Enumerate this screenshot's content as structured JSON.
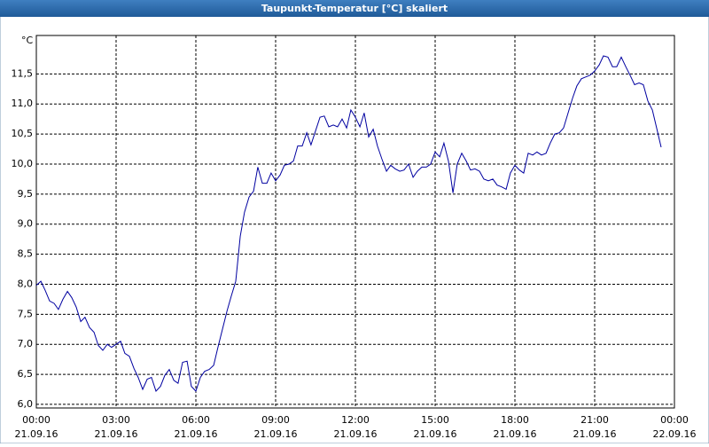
{
  "chart_data": {
    "type": "line",
    "title": "Taupunkt-Temperatur [°C] skaliert",
    "ylabel": "°C",
    "xlim": [
      0,
      24
    ],
    "xticks": [
      {
        "value": 0,
        "label": "00:00"
      },
      {
        "value": 3,
        "label": "03:00"
      },
      {
        "value": 6,
        "label": "06:00"
      },
      {
        "value": 9,
        "label": "09:00"
      },
      {
        "value": 12,
        "label": "12:00"
      },
      {
        "value": 15,
        "label": "15:00"
      },
      {
        "value": 18,
        "label": "18:00"
      },
      {
        "value": 21,
        "label": "21:00"
      },
      {
        "value": 24,
        "label": "00:00"
      }
    ],
    "xtick_dates": [
      "21.09.16",
      "21.09.16",
      "21.09.16",
      "21.09.16",
      "21.09.16",
      "21.09.16",
      "21.09.16",
      "21.09.16",
      "22.09.16"
    ],
    "ylim": [
      5.94,
      12.14
    ],
    "yticks": [
      {
        "value": 6,
        "label": "6,0"
      },
      {
        "value": 6.5,
        "label": "6,5"
      },
      {
        "value": 7,
        "label": "7,0"
      },
      {
        "value": 7.5,
        "label": "7,5"
      },
      {
        "value": 8,
        "label": "8,0"
      },
      {
        "value": 8.5,
        "label": "8,5"
      },
      {
        "value": 9,
        "label": "9,0"
      },
      {
        "value": 9.5,
        "label": "9,5"
      },
      {
        "value": 10,
        "label": "10,0"
      },
      {
        "value": 10.5,
        "label": "10,5"
      },
      {
        "value": 11,
        "label": "11,0"
      },
      {
        "value": 11.5,
        "label": "11,5"
      }
    ],
    "grid": true,
    "x": [
      0,
      0.17,
      0.33,
      0.5,
      0.67,
      0.83,
      1,
      1.17,
      1.33,
      1.5,
      1.67,
      1.83,
      2,
      2.17,
      2.33,
      2.5,
      2.67,
      2.83,
      3,
      3.17,
      3.33,
      3.5,
      3.67,
      3.83,
      4,
      4.17,
      4.33,
      4.5,
      4.67,
      4.83,
      5,
      5.17,
      5.33,
      5.5,
      5.67,
      5.83,
      6,
      6.17,
      6.33,
      6.5,
      6.67,
      6.83,
      7,
      7.17,
      7.33,
      7.5,
      7.67,
      7.83,
      8,
      8.17,
      8.33,
      8.5,
      8.67,
      8.83,
      9,
      9.17,
      9.33,
      9.5,
      9.67,
      9.83,
      10,
      10.17,
      10.33,
      10.5,
      10.67,
      10.83,
      11,
      11.17,
      11.33,
      11.5,
      11.67,
      11.83,
      12,
      12.17,
      12.33,
      12.5,
      12.67,
      12.83,
      13,
      13.17,
      13.33,
      13.5,
      13.67,
      13.83,
      14,
      14.17,
      14.33,
      14.5,
      14.67,
      14.83,
      15,
      15.17,
      15.33,
      15.5,
      15.67,
      15.83,
      16,
      16.17,
      16.33,
      16.5,
      16.67,
      16.83,
      17,
      17.17,
      17.33,
      17.5,
      17.67,
      17.83,
      18,
      18.17,
      18.33,
      18.5,
      18.67,
      18.83,
      19,
      19.17,
      19.33,
      19.5,
      19.67,
      19.83,
      20,
      20.17,
      20.33,
      20.5,
      20.67,
      20.83,
      21,
      21.17,
      21.33,
      21.5,
      21.67,
      21.83,
      22,
      22.17,
      22.33,
      22.5,
      22.67,
      22.83,
      23,
      23.17,
      23.33,
      23.5
    ],
    "series": [
      {
        "name": "Taupunkt",
        "color": "#0000a0",
        "values": [
          7.98,
          8.05,
          7.9,
          7.72,
          7.68,
          7.58,
          7.75,
          7.88,
          7.78,
          7.62,
          7.38,
          7.45,
          7.28,
          7.2,
          6.98,
          6.9,
          7.0,
          6.95,
          7.0,
          7.05,
          6.85,
          6.8,
          6.6,
          6.45,
          6.25,
          6.42,
          6.45,
          6.22,
          6.3,
          6.48,
          6.58,
          6.4,
          6.35,
          6.7,
          6.72,
          6.3,
          6.22,
          6.45,
          6.55,
          6.58,
          6.65,
          6.95,
          7.25,
          7.55,
          7.8,
          8.05,
          8.8,
          9.2,
          9.45,
          9.55,
          9.95,
          9.68,
          9.68,
          9.85,
          9.72,
          9.82,
          9.98,
          10.0,
          10.05,
          10.3,
          10.3,
          10.52,
          10.32,
          10.55,
          10.78,
          10.8,
          10.62,
          10.65,
          10.62,
          10.75,
          10.6,
          10.9,
          10.78,
          10.62,
          10.85,
          10.45,
          10.58,
          10.3,
          10.08,
          9.88,
          9.98,
          9.92,
          9.88,
          9.9,
          10.0,
          9.78,
          9.88,
          9.95,
          9.95,
          10.0,
          10.2,
          10.12,
          10.35,
          10.05,
          9.52,
          10.0,
          10.18,
          10.05,
          9.9,
          9.92,
          9.88,
          9.75,
          9.72,
          9.75,
          9.65,
          9.62,
          9.58,
          9.85,
          9.98,
          9.9,
          9.85,
          10.18,
          10.15,
          10.2,
          10.15,
          10.18,
          10.35,
          10.5,
          10.52,
          10.6,
          10.85,
          11.1,
          11.3,
          11.42,
          11.45,
          11.48,
          11.55,
          11.65,
          11.8,
          11.78,
          11.62,
          11.62,
          11.78,
          11.62,
          11.48,
          11.32,
          11.35,
          11.32,
          11.05,
          10.9,
          10.6,
          10.28
        ]
      }
    ]
  }
}
